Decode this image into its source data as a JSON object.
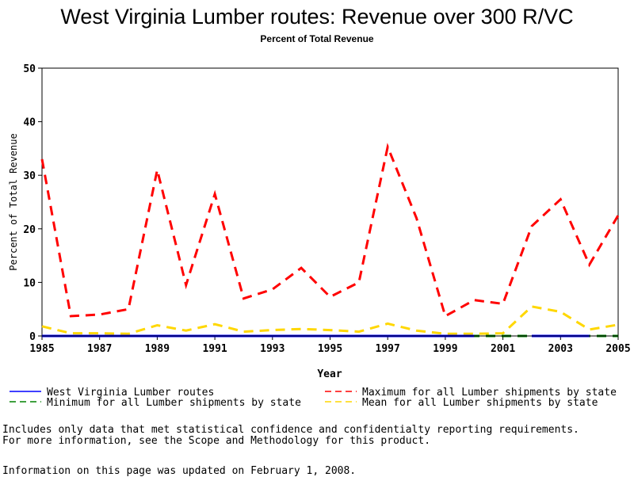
{
  "chart_data": {
    "type": "line",
    "title": "West Virginia Lumber routes: Revenue over 300 R/VC",
    "subtitle": "Percent of Total Revenue",
    "xlabel": "Year",
    "ylabel": "Percent of Total Revenue",
    "xlim": [
      1985,
      2005
    ],
    "ylim": [
      0,
      50
    ],
    "yticks": [
      0,
      10,
      20,
      30,
      40,
      50
    ],
    "xticks": [
      1985,
      1987,
      1989,
      1991,
      1993,
      1995,
      1997,
      1999,
      2001,
      2003,
      2005
    ],
    "grid": false,
    "legend_position": "bottom",
    "x": [
      1985,
      1986,
      1987,
      1988,
      1989,
      1990,
      1991,
      1992,
      1993,
      1994,
      1995,
      1996,
      1997,
      1998,
      1999,
      2000,
      2001,
      2002,
      2003,
      2004,
      2005
    ],
    "series": [
      {
        "name": "West Virginia Lumber routes",
        "color": "#0000ff",
        "dash": "solid",
        "values": [
          0,
          0,
          0,
          0,
          0,
          0,
          0,
          0,
          0,
          0,
          0,
          0,
          0,
          0,
          0,
          0,
          null,
          0,
          0,
          0,
          null
        ]
      },
      {
        "name": "Maximum for all Lumber shipments by state",
        "color": "#ff0000",
        "dash": "dashed",
        "values": [
          33,
          3.7,
          4,
          5,
          31,
          9.5,
          26.5,
          7,
          8.7,
          12.7,
          7.3,
          10,
          35.3,
          22,
          3.7,
          6.7,
          6,
          20.5,
          25.5,
          13.3,
          22.5
        ]
      },
      {
        "name": "Minimum for all Lumber shipments by state",
        "color": "#008000",
        "dash": "dashed",
        "values": [
          0,
          0,
          0,
          0,
          0,
          0,
          0,
          0,
          0,
          0,
          0,
          0,
          0,
          0,
          0,
          0,
          0,
          0,
          0,
          0,
          0
        ]
      },
      {
        "name": "Mean for all Lumber shipments by state",
        "color": "#ffd700",
        "dash": "dashed",
        "values": [
          1.8,
          0.5,
          0.5,
          0.4,
          2.0,
          1.0,
          2.2,
          0.8,
          1.1,
          1.3,
          1.1,
          0.8,
          2.3,
          1.0,
          0.4,
          0.4,
          0.5,
          5.5,
          4.5,
          1.2,
          2.1
        ]
      }
    ]
  },
  "notes": {
    "line1": "Includes only data that met statistical confidence and confidentialty reporting requirements.",
    "line2": "For more information, see the Scope and Methodology for this product.",
    "updated": "Information on this page was updated on February 1, 2008."
  }
}
